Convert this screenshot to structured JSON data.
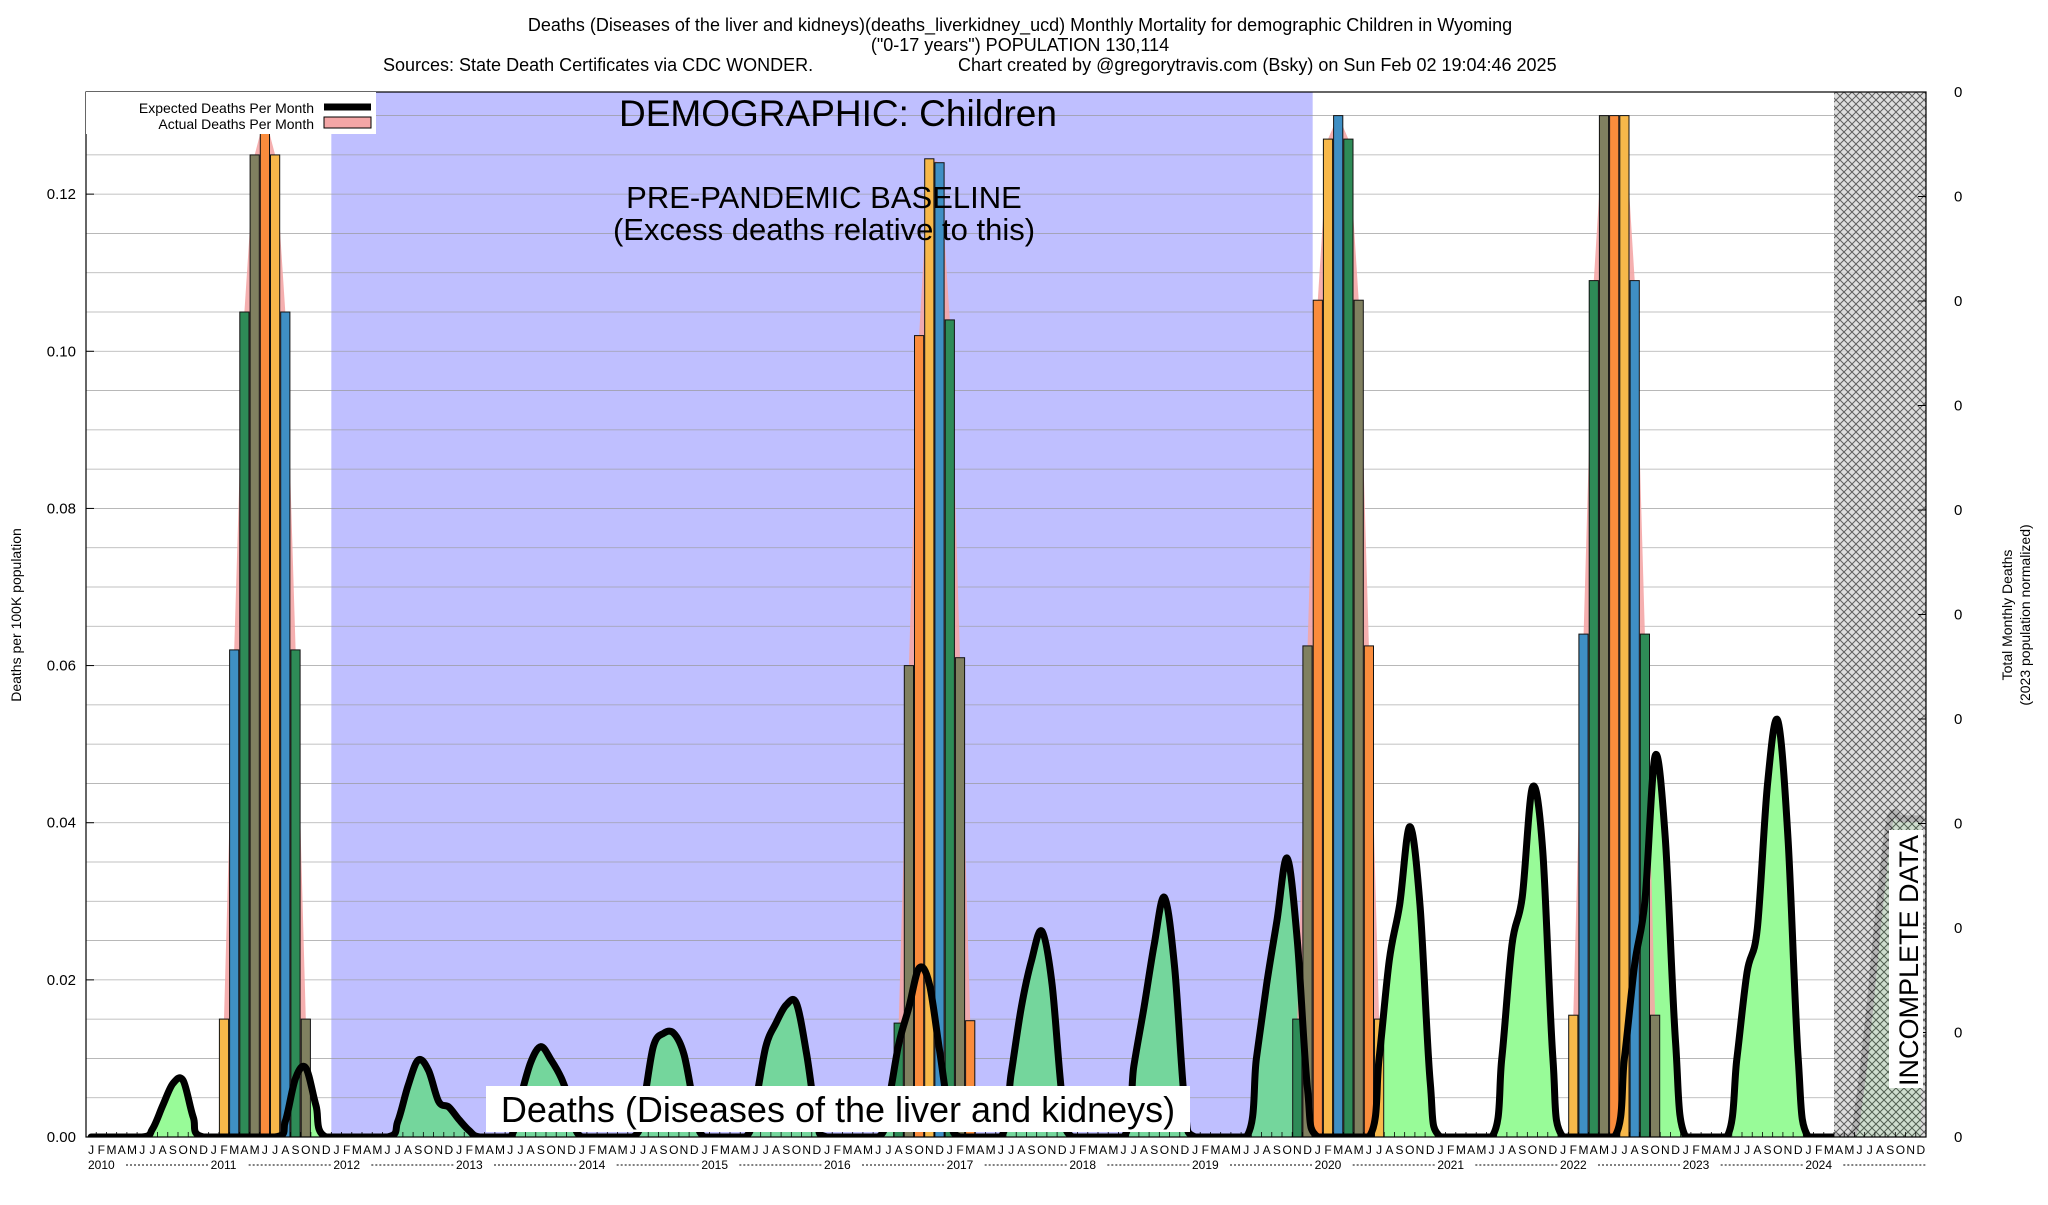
{
  "header": {
    "line1": "Deaths (Diseases of the liver and kidneys)(deaths_liverkidney_ucd) Monthly Mortality for demographic Children in Wyoming",
    "line2": "(\"0-17 years\") POPULATION 130,114",
    "line3a": "Sources: State Death Certificates via CDC WONDER.",
    "line3b": "Chart created by @gregorytravis.com (Bsky) on Sun Feb 02 19:04:46 2025"
  },
  "annotations": {
    "demographic": "DEMOGRAPHIC: Children",
    "baseline1": "PRE-PANDEMIC BASELINE",
    "baseline2": "(Excess deaths relative to this)",
    "incomplete": "INCOMPLETE DATA",
    "cause": "Deaths (Diseases of the liver and kidneys)"
  },
  "colors": {
    "baseline_band": "#bfbfff",
    "expected_fill_baseline": "#74d69c",
    "expected_fill_post": "#98fb98",
    "expected_line": "#000000",
    "actual_band": "#f4a6a6",
    "bar_colors": [
      "#2e8b57",
      "#808060",
      "#fa8c3c",
      "#f7b84a",
      "#3f8fc4"
    ],
    "incomplete_hatch": "#555555"
  },
  "chart_data": {
    "type": "bar",
    "title": "Deaths (Diseases of the liver and kidneys)(deaths_liverkidney_ucd) Monthly Mortality for demographic Children in Wyoming",
    "ylabel": "Deaths per 100K population",
    "ylabel_right": [
      "Total Monthly Deaths",
      "(2023 population normalized)"
    ],
    "ylim": [
      0,
      0.133
    ],
    "yticks": [
      0,
      0.02,
      0.04,
      0.06,
      0.08,
      0.1,
      0.12
    ],
    "yticks_labels": [
      "0.00",
      "0.02",
      "0.04",
      "0.06",
      "0.08",
      "0.10",
      "0.12"
    ],
    "right_ticks": [
      "0",
      "0",
      "0",
      "0",
      "0",
      "0",
      "0",
      "0",
      "0",
      "0",
      "0"
    ],
    "x_start": "2010-01",
    "x_end": "2024-12",
    "years": [
      2010,
      2011,
      2012,
      2013,
      2014,
      2015,
      2016,
      2017,
      2018,
      2019,
      2020,
      2021,
      2022,
      2023,
      2024
    ],
    "month_letters": [
      "J",
      "F",
      "M",
      "A",
      "M",
      "J",
      "J",
      "A",
      "S",
      "O",
      "N",
      "D"
    ],
    "baseline_period": [
      "2012-01",
      "2019-12"
    ],
    "incomplete_period": [
      "2024-04",
      "2024-12"
    ],
    "legend": {
      "position": "top-left",
      "entries": [
        {
          "name": "Expected Deaths Per Month",
          "style": "line"
        },
        {
          "name": "Actual Deaths Per Month",
          "style": "fill"
        }
      ]
    },
    "actual_bars": [
      {
        "month": "2011-02",
        "value": 0.015
      },
      {
        "month": "2011-03",
        "value": 0.062
      },
      {
        "month": "2011-04",
        "value": 0.105
      },
      {
        "month": "2011-05",
        "value": 0.125
      },
      {
        "month": "2011-06",
        "value": 0.13
      },
      {
        "month": "2011-07",
        "value": 0.125
      },
      {
        "month": "2011-08",
        "value": 0.105
      },
      {
        "month": "2011-09",
        "value": 0.062
      },
      {
        "month": "2011-10",
        "value": 0.015
      },
      {
        "month": "2016-08",
        "value": 0.0145
      },
      {
        "month": "2016-09",
        "value": 0.06
      },
      {
        "month": "2016-10",
        "value": 0.102
      },
      {
        "month": "2016-11",
        "value": 0.1245
      },
      {
        "month": "2016-12",
        "value": 0.124
      },
      {
        "month": "2017-01",
        "value": 0.104
      },
      {
        "month": "2017-02",
        "value": 0.061
      },
      {
        "month": "2017-03",
        "value": 0.0148
      },
      {
        "month": "2019-11",
        "value": 0.015
      },
      {
        "month": "2019-12",
        "value": 0.0625
      },
      {
        "month": "2020-01",
        "value": 0.1065
      },
      {
        "month": "2020-02",
        "value": 0.127
      },
      {
        "month": "2020-03",
        "value": 0.13
      },
      {
        "month": "2020-04",
        "value": 0.127
      },
      {
        "month": "2020-05",
        "value": 0.1065
      },
      {
        "month": "2020-06",
        "value": 0.0625
      },
      {
        "month": "2020-07",
        "value": 0.015
      },
      {
        "month": "2022-02",
        "value": 0.0155
      },
      {
        "month": "2022-03",
        "value": 0.064
      },
      {
        "month": "2022-04",
        "value": 0.109
      },
      {
        "month": "2022-05",
        "value": 0.13
      },
      {
        "month": "2022-06",
        "value": 0.13
      },
      {
        "month": "2022-07",
        "value": 0.13
      },
      {
        "month": "2022-08",
        "value": 0.109
      },
      {
        "month": "2022-09",
        "value": 0.064
      },
      {
        "month": "2022-10",
        "value": 0.0155
      }
    ],
    "expected_line": [
      {
        "month": "2010-01",
        "value": 0
      },
      {
        "month": "2010-06",
        "value": 0
      },
      {
        "month": "2010-07",
        "value": 0.001
      },
      {
        "month": "2010-08",
        "value": 0.004
      },
      {
        "month": "2010-09",
        "value": 0.0068
      },
      {
        "month": "2010-10",
        "value": 0.0072
      },
      {
        "month": "2010-11",
        "value": 0.0025
      },
      {
        "month": "2010-12",
        "value": 0
      },
      {
        "month": "2011-07",
        "value": 0
      },
      {
        "month": "2011-08",
        "value": 0.002
      },
      {
        "month": "2011-09",
        "value": 0.0075
      },
      {
        "month": "2011-10",
        "value": 0.0088
      },
      {
        "month": "2011-11",
        "value": 0.004
      },
      {
        "month": "2011-12",
        "value": 0
      },
      {
        "month": "2012-06",
        "value": 0
      },
      {
        "month": "2012-07",
        "value": 0.002
      },
      {
        "month": "2012-08",
        "value": 0.0065
      },
      {
        "month": "2012-09",
        "value": 0.0098
      },
      {
        "month": "2012-10",
        "value": 0.0085
      },
      {
        "month": "2012-11",
        "value": 0.0045
      },
      {
        "month": "2012-12",
        "value": 0.0038
      },
      {
        "month": "2013-01",
        "value": 0.0022
      },
      {
        "month": "2013-02",
        "value": 0.0008
      },
      {
        "month": "2013-03",
        "value": 0
      },
      {
        "month": "2013-06",
        "value": 0
      },
      {
        "month": "2013-07",
        "value": 0.005
      },
      {
        "month": "2013-08",
        "value": 0.0095
      },
      {
        "month": "2013-09",
        "value": 0.0115
      },
      {
        "month": "2013-10",
        "value": 0.0098
      },
      {
        "month": "2013-11",
        "value": 0.0075
      },
      {
        "month": "2013-12",
        "value": 0.004
      },
      {
        "month": "2014-01",
        "value": 0
      },
      {
        "month": "2014-06",
        "value": 0
      },
      {
        "month": "2014-07",
        "value": 0.004
      },
      {
        "month": "2014-08",
        "value": 0.0115
      },
      {
        "month": "2014-09",
        "value": 0.0132
      },
      {
        "month": "2014-10",
        "value": 0.0132
      },
      {
        "month": "2014-11",
        "value": 0.0105
      },
      {
        "month": "2014-12",
        "value": 0.004
      },
      {
        "month": "2015-01",
        "value": 0
      },
      {
        "month": "2015-05",
        "value": 0
      },
      {
        "month": "2015-06",
        "value": 0.0045
      },
      {
        "month": "2015-07",
        "value": 0.0115
      },
      {
        "month": "2015-08",
        "value": 0.0145
      },
      {
        "month": "2015-09",
        "value": 0.0168
      },
      {
        "month": "2015-10",
        "value": 0.017
      },
      {
        "month": "2015-11",
        "value": 0.0105
      },
      {
        "month": "2015-12",
        "value": 0.002
      },
      {
        "month": "2016-01",
        "value": 0
      },
      {
        "month": "2016-06",
        "value": 0
      },
      {
        "month": "2016-07",
        "value": 0.0045
      },
      {
        "month": "2016-08",
        "value": 0.0118
      },
      {
        "month": "2016-09",
        "value": 0.0165
      },
      {
        "month": "2016-10",
        "value": 0.0215
      },
      {
        "month": "2016-11",
        "value": 0.0195
      },
      {
        "month": "2016-12",
        "value": 0.011
      },
      {
        "month": "2017-01",
        "value": 0.0025
      },
      {
        "month": "2017-02",
        "value": 0
      },
      {
        "month": "2017-06",
        "value": 0
      },
      {
        "month": "2017-07",
        "value": 0.008
      },
      {
        "month": "2017-08",
        "value": 0.0165
      },
      {
        "month": "2017-09",
        "value": 0.0225
      },
      {
        "month": "2017-10",
        "value": 0.0262
      },
      {
        "month": "2017-11",
        "value": 0.0195
      },
      {
        "month": "2017-12",
        "value": 0.005
      },
      {
        "month": "2018-01",
        "value": 0
      },
      {
        "month": "2018-06",
        "value": 0
      },
      {
        "month": "2018-07",
        "value": 0.009
      },
      {
        "month": "2018-08",
        "value": 0.0165
      },
      {
        "month": "2018-09",
        "value": 0.0245
      },
      {
        "month": "2018-10",
        "value": 0.0305
      },
      {
        "month": "2018-11",
        "value": 0.0215
      },
      {
        "month": "2018-12",
        "value": 0.004
      },
      {
        "month": "2019-01",
        "value": 0
      },
      {
        "month": "2019-06",
        "value": 0
      },
      {
        "month": "2019-07",
        "value": 0.01
      },
      {
        "month": "2019-08",
        "value": 0.0195
      },
      {
        "month": "2019-09",
        "value": 0.0275
      },
      {
        "month": "2019-10",
        "value": 0.0355
      },
      {
        "month": "2019-11",
        "value": 0.025
      },
      {
        "month": "2019-12",
        "value": 0.006
      },
      {
        "month": "2020-01",
        "value": 0
      },
      {
        "month": "2020-06",
        "value": 0
      },
      {
        "month": "2020-07",
        "value": 0.01
      },
      {
        "month": "2020-08",
        "value": 0.0225
      },
      {
        "month": "2020-09",
        "value": 0.0295
      },
      {
        "month": "2020-10",
        "value": 0.0395
      },
      {
        "month": "2020-11",
        "value": 0.0295
      },
      {
        "month": "2020-12",
        "value": 0.007
      },
      {
        "month": "2021-01",
        "value": 0
      },
      {
        "month": "2021-06",
        "value": 0
      },
      {
        "month": "2021-07",
        "value": 0.01
      },
      {
        "month": "2021-08",
        "value": 0.0245
      },
      {
        "month": "2021-09",
        "value": 0.0305
      },
      {
        "month": "2021-10",
        "value": 0.0445
      },
      {
        "month": "2021-11",
        "value": 0.0365
      },
      {
        "month": "2021-12",
        "value": 0.01
      },
      {
        "month": "2022-01",
        "value": 0
      },
      {
        "month": "2022-06",
        "value": 0
      },
      {
        "month": "2022-07",
        "value": 0.01
      },
      {
        "month": "2022-08",
        "value": 0.022
      },
      {
        "month": "2022-09",
        "value": 0.03
      },
      {
        "month": "2022-10",
        "value": 0.0485
      },
      {
        "month": "2022-11",
        "value": 0.038
      },
      {
        "month": "2022-12",
        "value": 0.012
      },
      {
        "month": "2023-01",
        "value": 0
      },
      {
        "month": "2023-05",
        "value": 0
      },
      {
        "month": "2023-06",
        "value": 0.01
      },
      {
        "month": "2023-07",
        "value": 0.021
      },
      {
        "month": "2023-08",
        "value": 0.0265
      },
      {
        "month": "2023-09",
        "value": 0.045
      },
      {
        "month": "2023-10",
        "value": 0.053
      },
      {
        "month": "2023-11",
        "value": 0.038
      },
      {
        "month": "2023-12",
        "value": 0.01
      },
      {
        "month": "2024-01",
        "value": 0
      },
      {
        "month": "2024-05",
        "value": 0
      },
      {
        "month": "2024-06",
        "value": 0.005
      },
      {
        "month": "2024-07",
        "value": 0.0165
      },
      {
        "month": "2024-08",
        "value": 0.03
      },
      {
        "month": "2024-09",
        "value": 0.0405
      },
      {
        "month": "2024-10",
        "value": 0.0405
      },
      {
        "month": "2024-11",
        "value": 0.0405
      },
      {
        "month": "2024-12",
        "value": 0.0405
      }
    ]
  }
}
